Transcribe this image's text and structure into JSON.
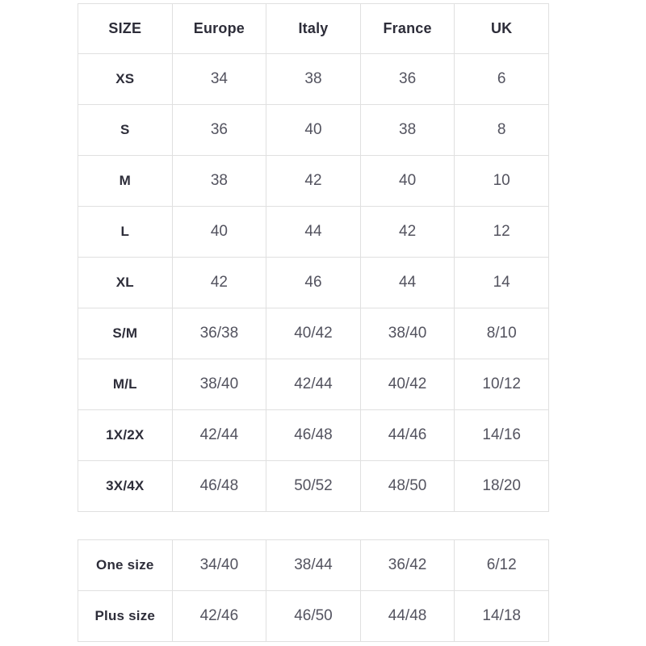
{
  "page": {
    "background": "#ffffff"
  },
  "colors": {
    "border": "#e0e0e0",
    "label_text": "#2d2d39",
    "value_text": "#53535f"
  },
  "chart_data": [
    {
      "type": "table",
      "name": "size-conversion-table",
      "columns": [
        "SIZE",
        "Europe",
        "Italy",
        "France",
        "UK"
      ],
      "rows": [
        {
          "label": "XS",
          "values": [
            "34",
            "38",
            "36",
            "6"
          ]
        },
        {
          "label": "S",
          "values": [
            "36",
            "40",
            "38",
            "8"
          ]
        },
        {
          "label": "M",
          "values": [
            "38",
            "42",
            "40",
            "10"
          ]
        },
        {
          "label": "L",
          "values": [
            "40",
            "44",
            "42",
            "12"
          ]
        },
        {
          "label": "XL",
          "values": [
            "42",
            "46",
            "44",
            "14"
          ]
        },
        {
          "label": "S/M",
          "values": [
            "36/38",
            "40/42",
            "38/40",
            "8/10"
          ]
        },
        {
          "label": "M/L",
          "values": [
            "38/40",
            "42/44",
            "40/42",
            "10/12"
          ]
        },
        {
          "label": "1X/2X",
          "values": [
            "42/44",
            "46/48",
            "44/46",
            "14/16"
          ]
        },
        {
          "label": "3X/4X",
          "values": [
            "46/48",
            "50/52",
            "48/50",
            "18/20"
          ]
        }
      ]
    },
    {
      "type": "table",
      "name": "special-sizes-table",
      "columns": [],
      "rows": [
        {
          "label": "One size",
          "values": [
            "34/40",
            "38/44",
            "36/42",
            "6/12"
          ]
        },
        {
          "label": "Plus size",
          "values": [
            "42/46",
            "46/50",
            "44/48",
            "14/18"
          ]
        }
      ]
    }
  ]
}
